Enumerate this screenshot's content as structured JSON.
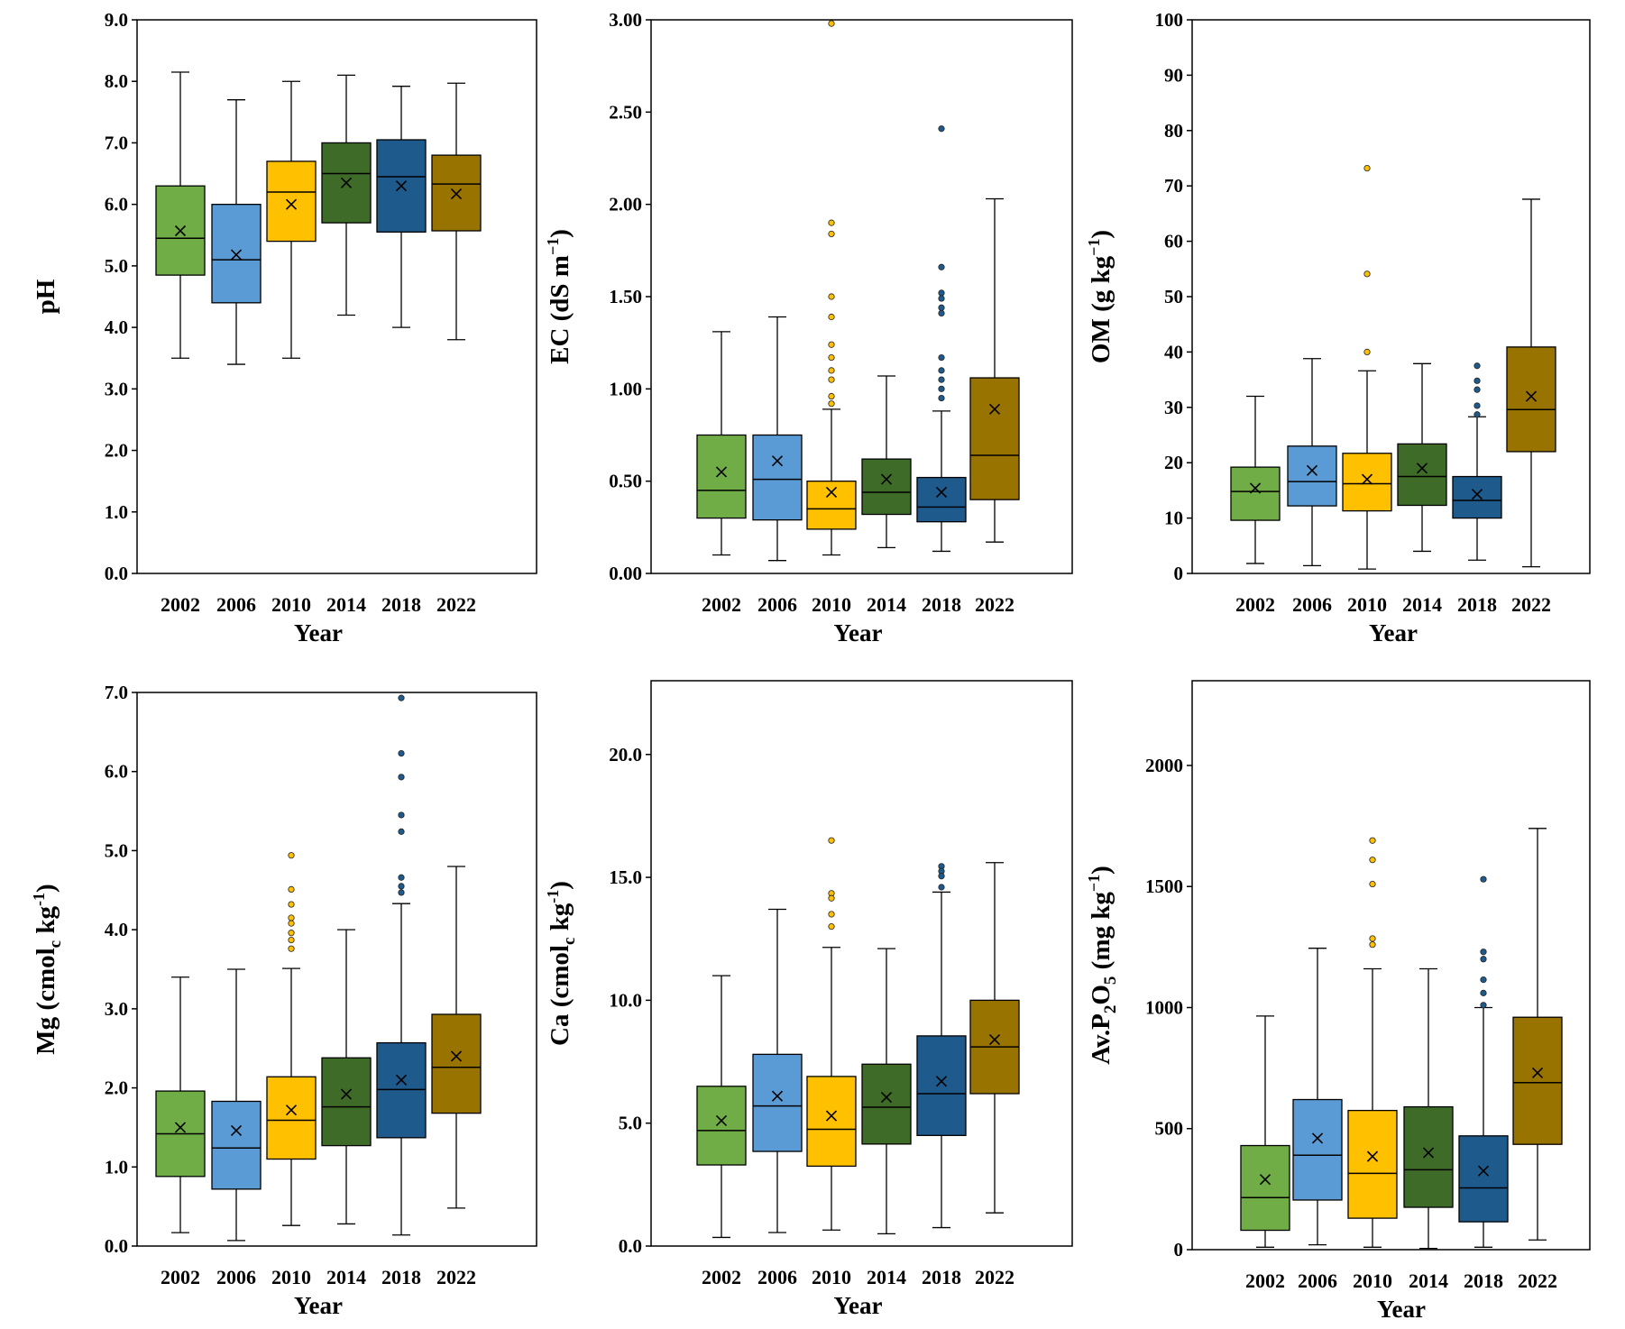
{
  "colors": {
    "2002": "#70ad47",
    "2006": "#5b9bd5",
    "2010": "#ffc000",
    "2014": "#3e6b27",
    "2018": "#1f5a8c",
    "2022": "#997300"
  },
  "chart_data": [
    {
      "type": "box",
      "panel": "pH",
      "ylabel": {
        "main": "pH",
        "sub": "",
        "after": "",
        "sup": ""
      },
      "xlabel": "Year",
      "categories": [
        "2002",
        "2006",
        "2010",
        "2014",
        "2018",
        "2022"
      ],
      "ylim": [
        0,
        9
      ],
      "yticks": [
        0,
        1,
        2,
        3,
        4,
        5,
        6,
        7,
        8,
        9
      ],
      "ytick_labels": [
        "0.0",
        "1.0",
        "2.0",
        "3.0",
        "4.0",
        "5.0",
        "6.0",
        "7.0",
        "8.0",
        "9.0"
      ],
      "series": [
        {
          "year": "2002",
          "min": 3.5,
          "q1": 4.85,
          "median": 5.45,
          "q3": 6.3,
          "max": 8.15,
          "mean": 5.57,
          "outliers": []
        },
        {
          "year": "2006",
          "min": 3.4,
          "q1": 4.4,
          "median": 5.1,
          "q3": 6.0,
          "max": 7.7,
          "mean": 5.18,
          "outliers": []
        },
        {
          "year": "2010",
          "min": 3.5,
          "q1": 5.4,
          "median": 6.2,
          "q3": 6.7,
          "max": 8.0,
          "mean": 6.0,
          "outliers": []
        },
        {
          "year": "2014",
          "min": 4.2,
          "q1": 5.7,
          "median": 6.5,
          "q3": 7.0,
          "max": 8.1,
          "mean": 6.35,
          "outliers": []
        },
        {
          "year": "2018",
          "min": 4.0,
          "q1": 5.55,
          "median": 6.45,
          "q3": 7.05,
          "max": 7.92,
          "mean": 6.3,
          "outliers": []
        },
        {
          "year": "2022",
          "min": 3.8,
          "q1": 5.57,
          "median": 6.33,
          "q3": 6.8,
          "max": 7.97,
          "mean": 6.17,
          "outliers": []
        }
      ]
    },
    {
      "type": "box",
      "panel": "EC",
      "ylabel": {
        "main": "EC (dS m",
        "sub": "",
        "after": "",
        "sup": "−1",
        "close": ")"
      },
      "xlabel": "Year",
      "categories": [
        "2002",
        "2006",
        "2010",
        "2014",
        "2018",
        "2022"
      ],
      "ylim": [
        0,
        3
      ],
      "yticks": [
        0,
        0.5,
        1,
        1.5,
        2,
        2.5,
        3
      ],
      "ytick_labels": [
        "0.00",
        "0.50",
        "1.00",
        "1.50",
        "2.00",
        "2.50",
        "3.00"
      ],
      "series": [
        {
          "year": "2002",
          "min": 0.1,
          "q1": 0.3,
          "median": 0.45,
          "q3": 0.75,
          "max": 1.31,
          "mean": 0.55,
          "outliers": []
        },
        {
          "year": "2006",
          "min": 0.07,
          "q1": 0.29,
          "median": 0.51,
          "q3": 0.75,
          "max": 1.39,
          "mean": 0.61,
          "outliers": []
        },
        {
          "year": "2010",
          "min": 0.1,
          "q1": 0.24,
          "median": 0.35,
          "q3": 0.5,
          "max": 0.89,
          "mean": 0.44,
          "outliers": [
            2.98,
            1.9,
            1.84,
            1.5,
            1.39,
            1.24,
            1.17,
            1.1,
            1.05,
            0.96,
            0.92
          ]
        },
        {
          "year": "2014",
          "min": 0.14,
          "q1": 0.32,
          "median": 0.44,
          "q3": 0.62,
          "max": 1.07,
          "mean": 0.51,
          "outliers": []
        },
        {
          "year": "2018",
          "min": 0.12,
          "q1": 0.28,
          "median": 0.36,
          "q3": 0.52,
          "max": 0.88,
          "mean": 0.44,
          "outliers": [
            2.41,
            1.66,
            1.52,
            1.49,
            1.44,
            1.41,
            1.17,
            1.1,
            1.05,
            1.0,
            0.95
          ]
        },
        {
          "year": "2022",
          "min": 0.17,
          "q1": 0.4,
          "median": 0.64,
          "q3": 1.06,
          "max": 2.03,
          "mean": 0.89,
          "outliers": []
        }
      ]
    },
    {
      "type": "box",
      "panel": "OM",
      "ylabel": {
        "main": "OM (g kg",
        "sub": "",
        "after": "",
        "sup": "−1",
        "close": ")"
      },
      "xlabel": "Year",
      "categories": [
        "2002",
        "2006",
        "2010",
        "2014",
        "2018",
        "2022"
      ],
      "ylim": [
        0,
        100
      ],
      "yticks": [
        0,
        10,
        20,
        30,
        40,
        50,
        60,
        70,
        80,
        90,
        100
      ],
      "ytick_labels": [
        "0",
        "10",
        "20",
        "30",
        "40",
        "50",
        "60",
        "70",
        "80",
        "90",
        "100"
      ],
      "series": [
        {
          "year": "2002",
          "min": 1.8,
          "q1": 9.6,
          "median": 14.8,
          "q3": 19.2,
          "max": 32.0,
          "mean": 15.4,
          "outliers": []
        },
        {
          "year": "2006",
          "min": 1.4,
          "q1": 12.2,
          "median": 16.6,
          "q3": 23.0,
          "max": 38.8,
          "mean": 18.6,
          "outliers": []
        },
        {
          "year": "2010",
          "min": 0.8,
          "q1": 11.3,
          "median": 16.2,
          "q3": 21.7,
          "max": 36.6,
          "mean": 17.0,
          "outliers": [
            73.2,
            54.1,
            40.0
          ]
        },
        {
          "year": "2014",
          "min": 4.0,
          "q1": 12.3,
          "median": 17.5,
          "q3": 23.4,
          "max": 37.9,
          "mean": 19.0,
          "outliers": []
        },
        {
          "year": "2018",
          "min": 2.4,
          "q1": 10.0,
          "median": 13.2,
          "q3": 17.5,
          "max": 28.3,
          "mean": 14.3,
          "outliers": [
            37.5,
            34.8,
            33.2,
            30.3,
            28.7
          ]
        },
        {
          "year": "2022",
          "min": 1.2,
          "q1": 22.0,
          "median": 29.6,
          "q3": 40.9,
          "max": 67.6,
          "mean": 32.0,
          "outliers": []
        }
      ]
    },
    {
      "type": "box",
      "panel": "Mg",
      "ylabel": {
        "main": "Mg (cmol",
        "sub": "c",
        "after": " kg",
        "sup": "-1",
        "close": ")"
      },
      "xlabel": "Year",
      "categories": [
        "2002",
        "2006",
        "2010",
        "2014",
        "2018",
        "2022"
      ],
      "ylim": [
        0,
        7
      ],
      "yticks": [
        0,
        1,
        2,
        3,
        4,
        5,
        6,
        7
      ],
      "ytick_labels": [
        "0.0",
        "1.0",
        "2.0",
        "3.0",
        "4.0",
        "5.0",
        "6.0",
        "7.0"
      ],
      "series": [
        {
          "year": "2002",
          "min": 0.17,
          "q1": 0.88,
          "median": 1.42,
          "q3": 1.96,
          "max": 3.4,
          "mean": 1.5,
          "outliers": []
        },
        {
          "year": "2006",
          "min": 0.07,
          "q1": 0.72,
          "median": 1.24,
          "q3": 1.83,
          "max": 3.5,
          "mean": 1.46,
          "outliers": []
        },
        {
          "year": "2010",
          "min": 0.26,
          "q1": 1.1,
          "median": 1.59,
          "q3": 2.14,
          "max": 3.51,
          "mean": 1.72,
          "outliers": [
            4.94,
            4.51,
            4.32,
            4.15,
            4.08,
            3.96,
            3.87,
            3.76
          ]
        },
        {
          "year": "2014",
          "min": 0.28,
          "q1": 1.27,
          "median": 1.76,
          "q3": 2.38,
          "max": 4.0,
          "mean": 1.92,
          "outliers": []
        },
        {
          "year": "2018",
          "min": 0.14,
          "q1": 1.37,
          "median": 1.98,
          "q3": 2.57,
          "max": 4.33,
          "mean": 2.1,
          "outliers": [
            6.93,
            6.23,
            5.93,
            5.45,
            5.24,
            4.66,
            4.55,
            4.47
          ]
        },
        {
          "year": "2022",
          "min": 0.48,
          "q1": 1.68,
          "median": 2.26,
          "q3": 2.93,
          "max": 4.8,
          "mean": 2.4,
          "outliers": []
        }
      ]
    },
    {
      "type": "box",
      "panel": "Ca",
      "ylabel": {
        "main": "Ca (cmol",
        "sub": "c",
        "after": " kg",
        "sup": "-1",
        "close": ")"
      },
      "xlabel": "Year",
      "categories": [
        "2002",
        "2006",
        "2010",
        "2014",
        "2018",
        "2022"
      ],
      "ylim": [
        0,
        23
      ],
      "yticks": [
        0,
        5,
        10,
        15,
        20
      ],
      "ytick_labels": [
        "0.0",
        "5.0",
        "10.0",
        "15.0",
        "20.0"
      ],
      "series": [
        {
          "year": "2002",
          "min": 0.35,
          "q1": 3.3,
          "median": 4.7,
          "q3": 6.5,
          "max": 11.0,
          "mean": 5.1,
          "outliers": []
        },
        {
          "year": "2006",
          "min": 0.55,
          "q1": 3.85,
          "median": 5.7,
          "q3": 7.8,
          "max": 13.7,
          "mean": 6.1,
          "outliers": []
        },
        {
          "year": "2010",
          "min": 0.65,
          "q1": 3.25,
          "median": 4.75,
          "q3": 6.9,
          "max": 12.15,
          "mean": 5.3,
          "outliers": [
            16.5,
            14.35,
            14.15,
            13.5,
            13.0
          ]
        },
        {
          "year": "2014",
          "min": 0.5,
          "q1": 4.15,
          "median": 5.65,
          "q3": 7.4,
          "max": 12.1,
          "mean": 6.05,
          "outliers": []
        },
        {
          "year": "2018",
          "min": 0.75,
          "q1": 4.5,
          "median": 6.2,
          "q3": 8.55,
          "max": 14.4,
          "mean": 6.7,
          "outliers": [
            15.45,
            15.25,
            15.05,
            14.6
          ]
        },
        {
          "year": "2022",
          "min": 1.35,
          "q1": 6.2,
          "median": 8.1,
          "q3": 10.0,
          "max": 15.6,
          "mean": 8.4,
          "outliers": []
        }
      ]
    },
    {
      "type": "box",
      "panel": "Av.P2O5",
      "ylabel": {
        "main": "Av.P",
        "sub": "2",
        "after": "O",
        "sub2": "5",
        "after2": " (mg kg",
        "sup": "−1",
        "close": ")"
      },
      "xlabel": "Year",
      "categories": [
        "2002",
        "2006",
        "2010",
        "2014",
        "2018",
        "2022"
      ],
      "ylim": [
        0,
        2350
      ],
      "yticks": [
        0,
        500,
        1000,
        1500,
        2000
      ],
      "ytick_labels": [
        "0",
        "500",
        "1000",
        "1500",
        "2000"
      ],
      "series": [
        {
          "year": "2002",
          "min": 10,
          "q1": 80,
          "median": 215,
          "q3": 430,
          "max": 965,
          "mean": 290,
          "outliers": []
        },
        {
          "year": "2006",
          "min": 20,
          "q1": 205,
          "median": 390,
          "q3": 620,
          "max": 1245,
          "mean": 460,
          "outliers": []
        },
        {
          "year": "2010",
          "min": 10,
          "q1": 130,
          "median": 315,
          "q3": 575,
          "max": 1160,
          "mean": 385,
          "outliers": [
            1690,
            1610,
            1510,
            1285,
            1260
          ]
        },
        {
          "year": "2014",
          "min": 5,
          "q1": 175,
          "median": 330,
          "q3": 590,
          "max": 1160,
          "mean": 400,
          "outliers": []
        },
        {
          "year": "2018",
          "min": 10,
          "q1": 115,
          "median": 255,
          "q3": 470,
          "max": 1000,
          "mean": 325,
          "outliers": [
            1530,
            1230,
            1200,
            1115,
            1060,
            1010
          ]
        },
        {
          "year": "2022",
          "min": 40,
          "q1": 435,
          "median": 690,
          "q3": 960,
          "max": 1740,
          "mean": 730,
          "outliers": []
        }
      ]
    }
  ]
}
